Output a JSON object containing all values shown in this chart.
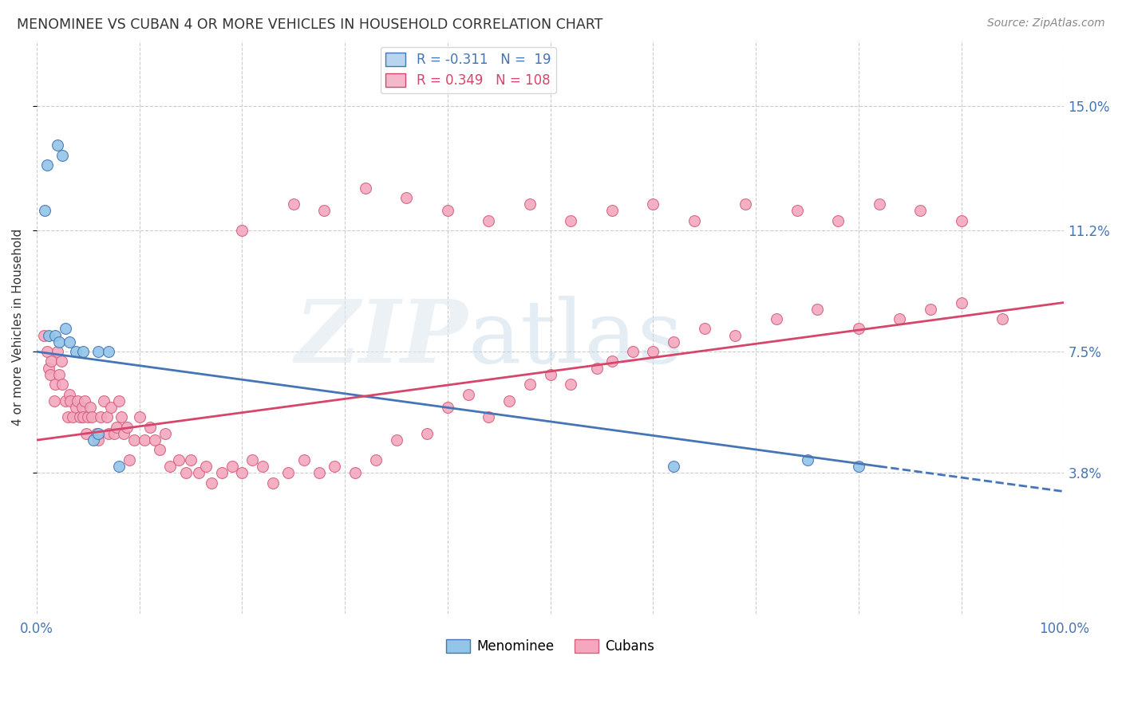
{
  "title": "MENOMINEE VS CUBAN 4 OR MORE VEHICLES IN HOUSEHOLD CORRELATION CHART",
  "source": "Source: ZipAtlas.com",
  "ylabel": "4 or more Vehicles in Household",
  "ytick_labels": [
    "3.8%",
    "7.5%",
    "11.2%",
    "15.0%"
  ],
  "ytick_values": [
    0.038,
    0.075,
    0.112,
    0.15
  ],
  "xlim": [
    0.0,
    1.0
  ],
  "ylim": [
    -0.005,
    0.17
  ],
  "blue_color": "#92c5e8",
  "pink_color": "#f4a8c0",
  "line_blue": "#4575b4",
  "line_pink": "#d6456a",
  "menominee_x": [
    0.01,
    0.02,
    0.025,
    0.008,
    0.012,
    0.018,
    0.022,
    0.028,
    0.032,
    0.038,
    0.045,
    0.055,
    0.06,
    0.06,
    0.07,
    0.08,
    0.62,
    0.75,
    0.8
  ],
  "menominee_y": [
    0.132,
    0.138,
    0.135,
    0.118,
    0.08,
    0.08,
    0.078,
    0.082,
    0.078,
    0.075,
    0.075,
    0.048,
    0.05,
    0.075,
    0.075,
    0.04,
    0.04,
    0.042,
    0.04
  ],
  "cuban_x": [
    0.007,
    0.01,
    0.012,
    0.013,
    0.014,
    0.017,
    0.018,
    0.02,
    0.022,
    0.024,
    0.025,
    0.028,
    0.03,
    0.032,
    0.033,
    0.035,
    0.038,
    0.04,
    0.042,
    0.044,
    0.045,
    0.047,
    0.048,
    0.05,
    0.052,
    0.054,
    0.058,
    0.06,
    0.062,
    0.065,
    0.068,
    0.07,
    0.072,
    0.075,
    0.078,
    0.08,
    0.082,
    0.085,
    0.088,
    0.09,
    0.095,
    0.1,
    0.105,
    0.11,
    0.115,
    0.12,
    0.125,
    0.13,
    0.138,
    0.145,
    0.15,
    0.158,
    0.165,
    0.17,
    0.18,
    0.19,
    0.2,
    0.21,
    0.22,
    0.23,
    0.245,
    0.26,
    0.275,
    0.29,
    0.31,
    0.33,
    0.35,
    0.38,
    0.4,
    0.42,
    0.44,
    0.46,
    0.48,
    0.5,
    0.52,
    0.545,
    0.56,
    0.58,
    0.6,
    0.62,
    0.65,
    0.68,
    0.72,
    0.76,
    0.8,
    0.84,
    0.87,
    0.9,
    0.94,
    0.2,
    0.25,
    0.28,
    0.32,
    0.36,
    0.4,
    0.44,
    0.48,
    0.52,
    0.56,
    0.6,
    0.64,
    0.69,
    0.74,
    0.78,
    0.82,
    0.86,
    0.9
  ],
  "cuban_y": [
    0.08,
    0.075,
    0.07,
    0.068,
    0.072,
    0.06,
    0.065,
    0.075,
    0.068,
    0.072,
    0.065,
    0.06,
    0.055,
    0.062,
    0.06,
    0.055,
    0.058,
    0.06,
    0.055,
    0.058,
    0.055,
    0.06,
    0.05,
    0.055,
    0.058,
    0.055,
    0.05,
    0.048,
    0.055,
    0.06,
    0.055,
    0.05,
    0.058,
    0.05,
    0.052,
    0.06,
    0.055,
    0.05,
    0.052,
    0.042,
    0.048,
    0.055,
    0.048,
    0.052,
    0.048,
    0.045,
    0.05,
    0.04,
    0.042,
    0.038,
    0.042,
    0.038,
    0.04,
    0.035,
    0.038,
    0.04,
    0.038,
    0.042,
    0.04,
    0.035,
    0.038,
    0.042,
    0.038,
    0.04,
    0.038,
    0.042,
    0.048,
    0.05,
    0.058,
    0.062,
    0.055,
    0.06,
    0.065,
    0.068,
    0.065,
    0.07,
    0.072,
    0.075,
    0.075,
    0.078,
    0.082,
    0.08,
    0.085,
    0.088,
    0.082,
    0.085,
    0.088,
    0.09,
    0.085,
    0.112,
    0.12,
    0.118,
    0.125,
    0.122,
    0.118,
    0.115,
    0.12,
    0.115,
    0.118,
    0.12,
    0.115,
    0.12,
    0.118,
    0.115,
    0.12,
    0.118,
    0.115
  ],
  "blue_line_x0": 0.0,
  "blue_line_y0": 0.075,
  "blue_line_x1": 0.82,
  "blue_line_y1": 0.04,
  "pink_line_x0": 0.0,
  "pink_line_y0": 0.048,
  "pink_line_x1": 1.0,
  "pink_line_y1": 0.09
}
